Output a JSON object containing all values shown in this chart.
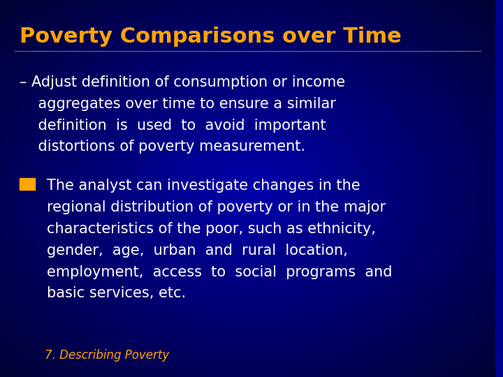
{
  "title": "Poverty Comparisons over Time",
  "title_color": "#FFA500",
  "title_fontsize": 22,
  "title_fontstyle": "bold",
  "bg_color_center": "#00008B",
  "bg_color_edge": "#000033",
  "bullet1_prefix": "– ",
  "bullet1_text_line1": "Adjust definition of consumption or income",
  "bullet1_text_line2": "aggregates over time to ensure a similar",
  "bullet1_text_line3": "definition  is  used  to  avoid  important",
  "bullet1_text_line4": "distortions of poverty measurement.",
  "bullet2_text_line1": "The analyst can investigate changes in the",
  "bullet2_text_line2": "regional distribution of poverty or in the major",
  "bullet2_text_line3": "characteristics of the poor, such as ethnicity,",
  "bullet2_text_line4": "gender,  age,  urban  and  rural  location,",
  "bullet2_text_line5": "employment,  access  to  social  programs  and",
  "bullet2_text_line6": "basic services, etc.",
  "footer_text": "7. Describing Poverty",
  "footer_color": "#FFA500",
  "text_color": "#FFFFFF",
  "bullet_color": "#FFA500",
  "text_fontsize": 15,
  "footer_fontsize": 12
}
